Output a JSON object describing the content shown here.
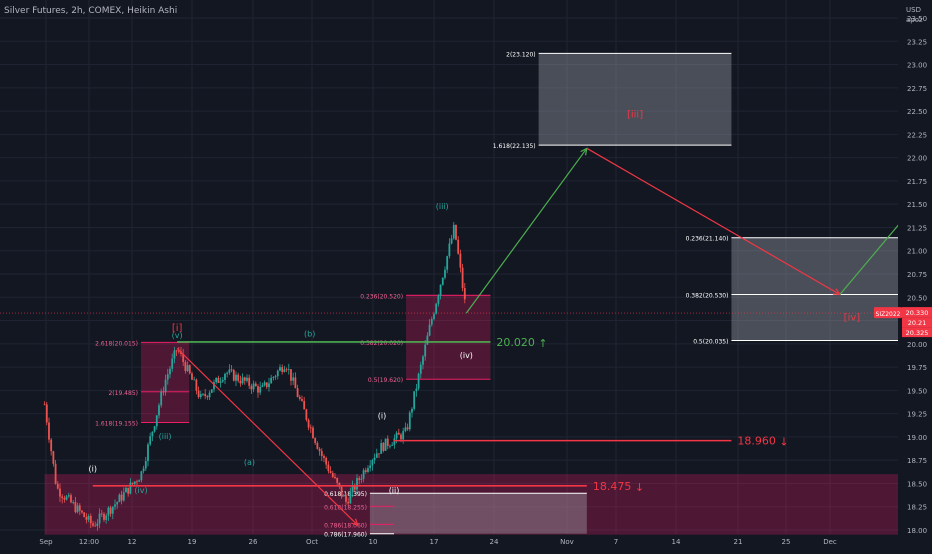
{
  "header": {
    "title": "Silver Futures, 2h, COMEX, Heikin Ashi"
  },
  "axis": {
    "currency": "USD",
    "unit": "apoz"
  },
  "colors": {
    "background": "#131722",
    "grid": "#1f2433",
    "text": "#b2b5be",
    "bull": "#26a69a",
    "bear": "#ef5350",
    "wave": "#26a69a",
    "red": "#f23645",
    "green": "#4caf50",
    "white": "#ffffff"
  },
  "chart_data": {
    "type": "candlestick",
    "x_axis": {
      "labels": [
        "Sep",
        "12:00",
        "12",
        "19",
        "26",
        "Oct",
        "10",
        "17",
        "24",
        "Nov",
        "7",
        "14",
        "21",
        "25",
        "Dec"
      ]
    },
    "y_axis": {
      "range": [
        18.0,
        23.5
      ],
      "ticks": [
        "23.50",
        "23.25",
        "23.00",
        "22.75",
        "22.50",
        "22.25",
        "22.00",
        "21.75",
        "21.50",
        "21.25",
        "21.00",
        "20.75",
        "20.50",
        "20.25",
        "20.00",
        "19.75",
        "19.50",
        "19.25",
        "19.00",
        "18.75",
        "18.50",
        "18.25",
        "18.00"
      ]
    },
    "price_labels": {
      "symbol": "SIZ2022",
      "last": "20.330",
      "p2": "20.21",
      "p3": "20.325"
    },
    "price_path": [
      [
        "2022-09-01",
        19.35
      ],
      [
        "2022-09-02",
        18.45
      ],
      [
        "2022-09-05",
        18.05
      ],
      [
        "2022-09-07",
        18.3
      ],
      [
        "2022-09-09",
        18.6
      ],
      [
        "2022-09-11",
        19.6
      ],
      [
        "2022-09-12",
        19.95
      ],
      [
        "2022-09-14",
        19.4
      ],
      [
        "2022-09-16",
        19.7
      ],
      [
        "2022-09-19",
        19.5
      ],
      [
        "2022-09-21",
        19.8
      ],
      [
        "2022-09-22",
        19.45
      ],
      [
        "2022-09-24",
        18.8
      ],
      [
        "2022-09-26",
        18.3
      ],
      [
        "2022-09-28",
        18.75
      ],
      [
        "2022-09-29",
        18.9
      ],
      [
        "2022-10-01",
        19.05
      ],
      [
        "2022-10-03",
        20.2
      ],
      [
        "2022-10-05",
        21.25
      ],
      [
        "2022-10-06",
        20.33
      ]
    ],
    "zones": [
      {
        "from": "2022-09-09",
        "to": "2022-09-13",
        "low": 19.155,
        "high": 20.015,
        "kind": "red"
      },
      {
        "from": "2022-10-01",
        "to": "2022-10-08",
        "low": 19.62,
        "high": 20.53,
        "kind": "red"
      },
      {
        "from": "2022-09-01",
        "to": "2022-12-05",
        "low": 17.95,
        "high": 18.6,
        "kind": "red"
      },
      {
        "from": "2022-09-28",
        "to": "2022-10-16",
        "low": 17.96,
        "high": 18.395,
        "kind": "grey"
      },
      {
        "from": "2022-10-12",
        "to": "2022-10-28",
        "low": 22.135,
        "high": 23.12,
        "kind": "grey"
      },
      {
        "from": "2022-10-28",
        "to": "2022-11-19",
        "low": 20.035,
        "high": 21.14,
        "kind": "grey"
      }
    ],
    "fib_lines": [
      {
        "label": "2(23.120)",
        "date": "2022-10-12",
        "to": "2022-10-28",
        "value": 23.12
      },
      {
        "label": "1.618(22.135)",
        "date": "2022-10-12",
        "to": "2022-10-28",
        "value": 22.135
      },
      {
        "label": "0.236(21.140)",
        "date": "2022-10-28",
        "to": "2022-11-19",
        "value": 21.14
      },
      {
        "label": "0.382(20.530)",
        "date": "2022-10-28",
        "to": "2022-11-19",
        "value": 20.53
      },
      {
        "label": "0.5(20.035)",
        "date": "2022-10-28",
        "to": "2022-11-19",
        "value": 20.035
      },
      {
        "label": "0.236(20.520)",
        "date": "2022-10-01",
        "to": "2022-10-08",
        "value": 20.52
      },
      {
        "label": "0.382(20.020)",
        "date": "2022-10-01",
        "to": "2022-10-08",
        "value": 20.02
      },
      {
        "label": "0.5(19.620)",
        "date": "2022-10-01",
        "to": "2022-10-08",
        "value": 19.62
      },
      {
        "label": "2.618(20.015)",
        "date": "2022-09-09",
        "to": "2022-09-13",
        "value": 20.015
      },
      {
        "label": "2(19.485)",
        "date": "2022-09-09",
        "to": "2022-09-13",
        "value": 19.485
      },
      {
        "label": "1.618(19.155)",
        "date": "2022-09-09",
        "to": "2022-09-13",
        "value": 19.155
      },
      {
        "label": "0.618(18.395)",
        "date": "2022-09-28",
        "to": "2022-10-16",
        "value": 18.395
      },
      {
        "label": "0.618(18.255)",
        "date": "2022-09-28",
        "to": "2022-09-30",
        "value": 18.255
      },
      {
        "label": "0.786(18.060)",
        "date": "2022-09-28",
        "to": "2022-09-30",
        "value": 18.06
      },
      {
        "label": "0.786(17.960)",
        "date": "2022-09-28",
        "to": "2022-09-30",
        "value": 17.96
      }
    ],
    "levels": [
      {
        "label": "20.020",
        "from": "2022-09-12",
        "to": "2022-10-08",
        "value": 20.02,
        "color": "green",
        "arrow": "↑"
      },
      {
        "label": "18.960",
        "from": "2022-09-30",
        "to": "2022-10-28",
        "value": 18.96,
        "color": "red",
        "arrow": "↓"
      },
      {
        "label": "18.475",
        "from": "2022-09-05",
        "to": "2022-10-16",
        "value": 18.475,
        "color": "red",
        "arrow": "↓"
      }
    ],
    "wave_labels": [
      {
        "text": "[i]",
        "date": "2022-09-12",
        "value": 20.14,
        "color": "red"
      },
      {
        "text": "(v)",
        "date": "2022-09-12",
        "value": 20.06,
        "color": "wave"
      },
      {
        "text": "(b)",
        "date": "2022-09-23",
        "value": 20.08,
        "color": "wave"
      },
      {
        "text": "(iii)",
        "date": "2022-09-11",
        "value": 18.98,
        "color": "wave"
      },
      {
        "text": "(a)",
        "date": "2022-09-18",
        "value": 18.7,
        "color": "wave"
      },
      {
        "text": "(i)",
        "date": "2022-09-05",
        "value": 18.63,
        "color": "white"
      },
      {
        "text": "(iv)",
        "date": "2022-09-09",
        "value": 18.4,
        "color": "wave"
      },
      {
        "text": "(i)",
        "date": "2022-09-29",
        "value": 19.2,
        "color": "white"
      },
      {
        "text": "(ii)",
        "date": "2022-09-30",
        "value": 18.4,
        "color": "white"
      },
      {
        "text": "(iii)",
        "date": "2022-10-04",
        "value": 21.45,
        "color": "wave"
      },
      {
        "text": "(iv)",
        "date": "2022-10-06",
        "value": 19.85,
        "color": "white"
      },
      {
        "text": "[iii]",
        "date": "2022-10-20",
        "value": 22.43,
        "color": "red"
      },
      {
        "text": "[iv]",
        "date": "2022-11-07",
        "value": 20.25,
        "color": "red"
      }
    ],
    "projection": [
      {
        "from": [
          "2022-10-06",
          20.33
        ],
        "to": [
          "2022-10-16",
          22.1
        ],
        "color": "green"
      },
      {
        "from": [
          "2022-10-16",
          22.1
        ],
        "to": [
          "2022-11-06",
          20.53
        ],
        "color": "red"
      },
      {
        "from": [
          "2022-11-06",
          20.53
        ],
        "to": [
          "2022-11-25",
          23.45
        ],
        "color": "green"
      },
      {
        "from": [
          "2022-09-12",
          19.95
        ],
        "to": [
          "2022-09-27",
          18.05
        ],
        "color": "red"
      }
    ]
  }
}
